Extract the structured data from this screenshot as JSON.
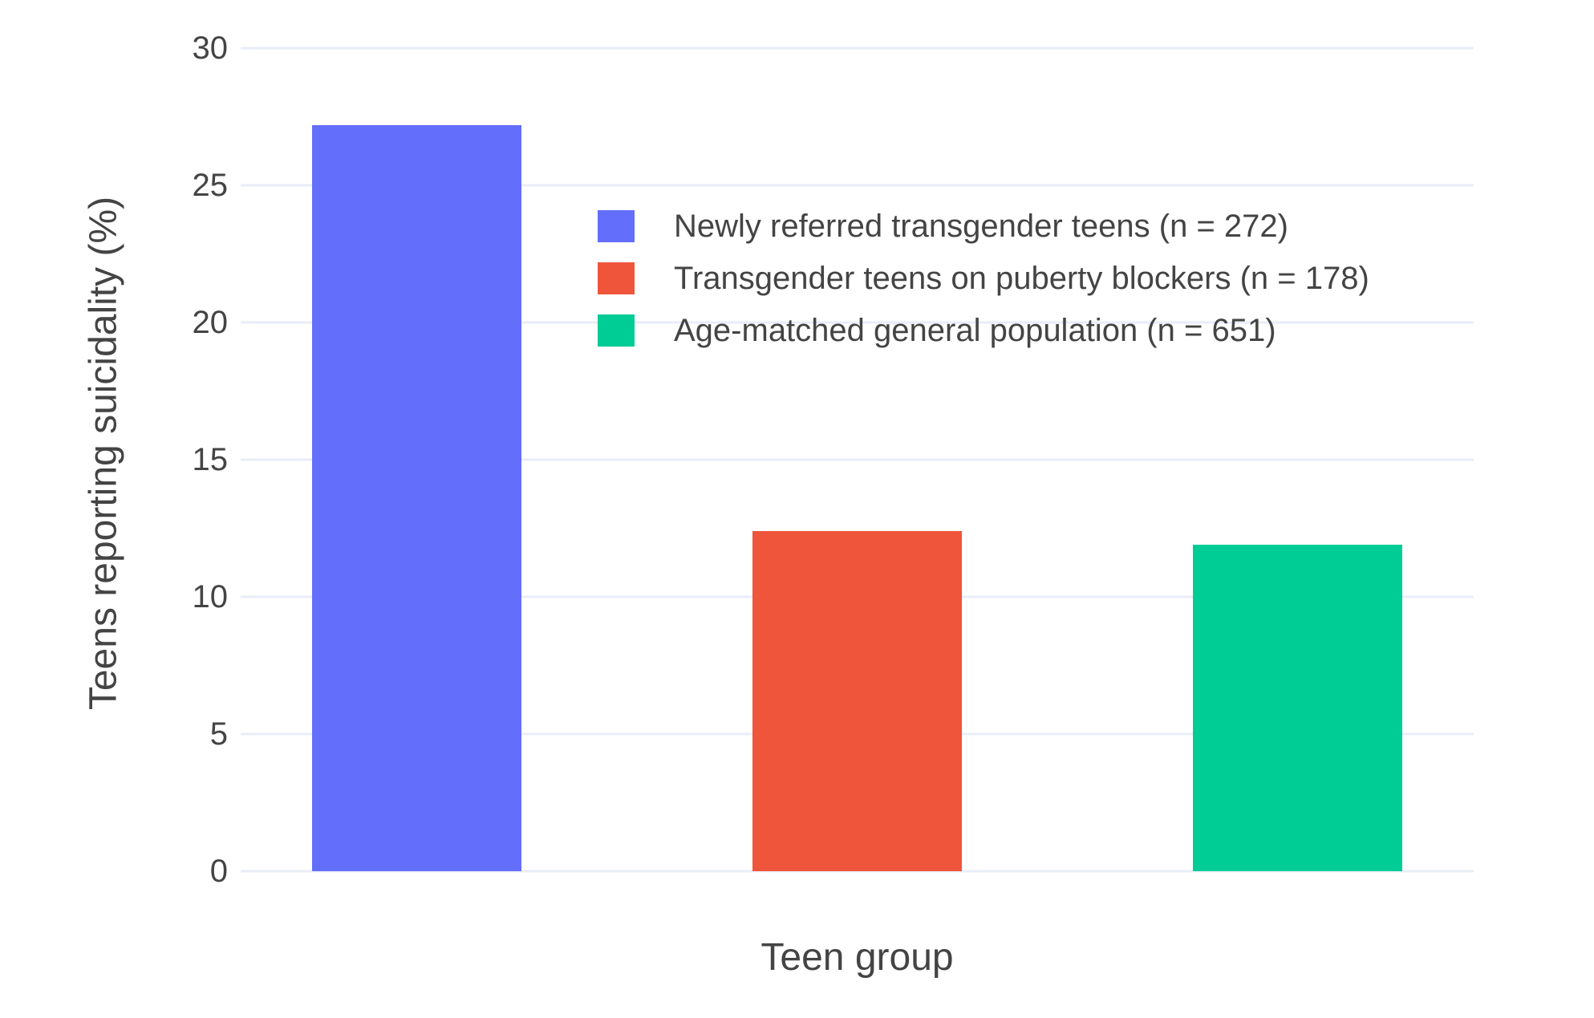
{
  "chart_data": {
    "type": "bar",
    "title": "",
    "xlabel": "Teen group",
    "ylabel": "Teens reporting suicidality (%)",
    "ylim": [
      0,
      30
    ],
    "yticks": [
      0,
      5,
      10,
      15,
      20,
      25,
      30
    ],
    "grid": true,
    "legend_position": "inside-upper-center",
    "series": [
      {
        "name": "Newly referred transgender teens (n = 272)",
        "value": 27.2,
        "color": "#636EFA"
      },
      {
        "name": "Transgender teens on puberty blockers (n = 178)",
        "value": 12.4,
        "color": "#EF553B"
      },
      {
        "name": "Age-matched general population (n = 651)",
        "value": 11.9,
        "color": "#00CC96"
      }
    ],
    "colors": {
      "background": "#FFFFFF",
      "gridline": "#E9EDF8",
      "text": "#444444"
    }
  }
}
